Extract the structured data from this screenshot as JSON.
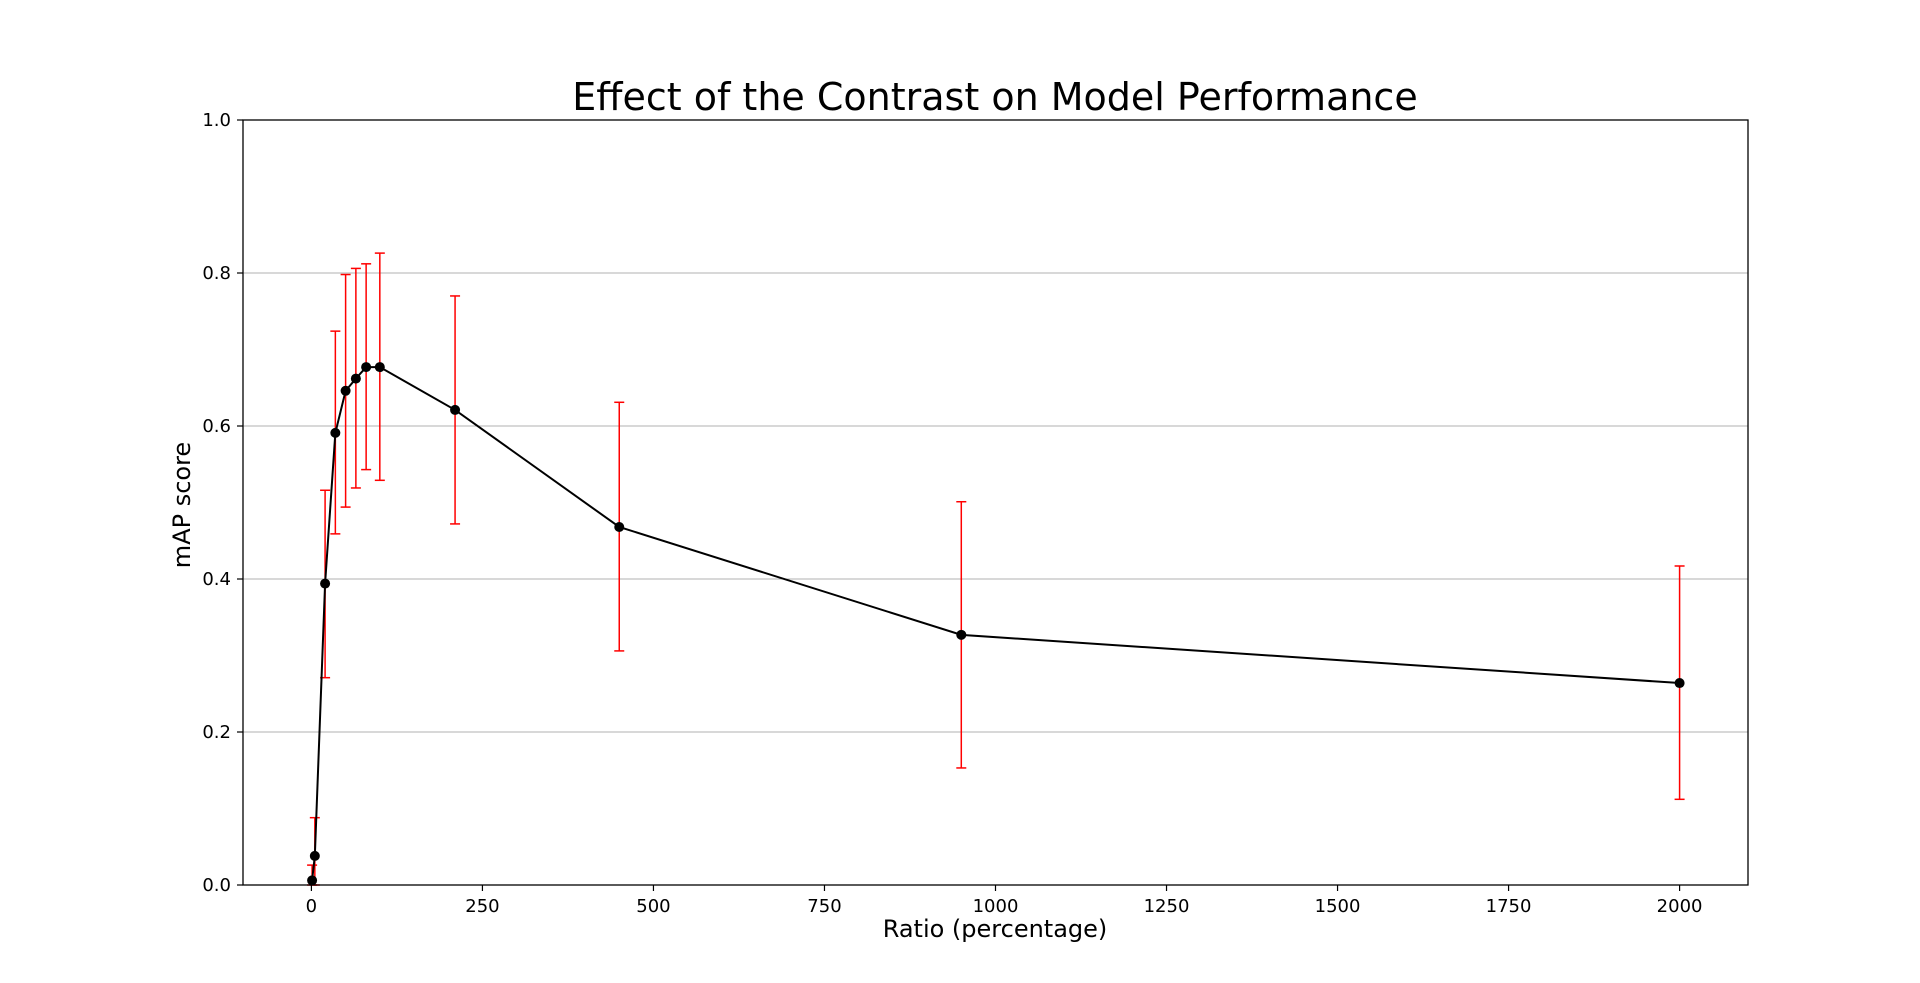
{
  "chart_data": {
    "type": "line",
    "title": "Effect of the Contrast on Model Performance",
    "xlabel": "Ratio (percentage)",
    "ylabel": "mAP score",
    "xlim": [
      -100,
      2100
    ],
    "ylim": [
      0.0,
      1.0
    ],
    "xticks": [
      0,
      250,
      500,
      750,
      1000,
      1250,
      1500,
      1750,
      2000
    ],
    "xtick_labels": [
      "0",
      "250",
      "500",
      "750",
      "1000",
      "1250",
      "1500",
      "1750",
      "2000"
    ],
    "yticks": [
      0.0,
      0.2,
      0.4,
      0.6,
      0.8,
      1.0
    ],
    "ytick_labels": [
      "0.0",
      "0.2",
      "0.4",
      "0.6",
      "0.8",
      "1.0"
    ],
    "grid": "y-axis",
    "line_color": "#000000",
    "errorbar_color": "#ff0000",
    "series": [
      {
        "x": [
          1,
          5,
          20,
          35,
          50,
          65,
          80,
          100,
          210,
          450,
          950,
          2000
        ],
        "y": [
          0.006,
          0.038,
          0.394,
          0.591,
          0.646,
          0.662,
          0.677,
          0.677,
          0.621,
          0.468,
          0.327,
          0.264
        ],
        "yerr_low": [
          0.0,
          0.0,
          0.271,
          0.459,
          0.494,
          0.519,
          0.543,
          0.529,
          0.472,
          0.306,
          0.153,
          0.112
        ],
        "yerr_high": [
          0.026,
          0.088,
          0.516,
          0.724,
          0.798,
          0.806,
          0.812,
          0.826,
          0.77,
          0.631,
          0.501,
          0.417
        ]
      }
    ]
  }
}
